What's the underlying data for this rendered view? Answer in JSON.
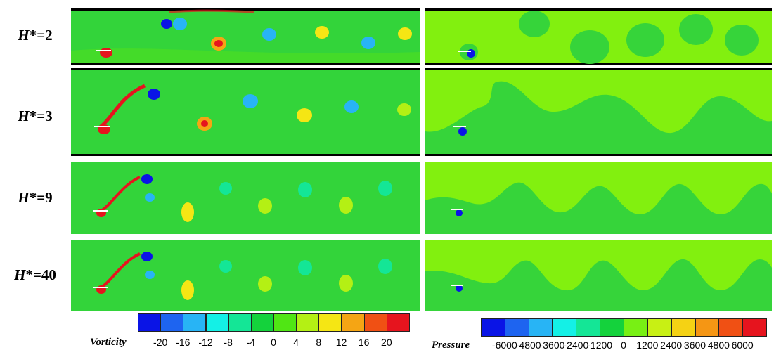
{
  "rows": [
    {
      "h_prefix": "H",
      "h_suffix": "*=2"
    },
    {
      "h_prefix": "H",
      "h_suffix": "*=3"
    },
    {
      "h_prefix": "H",
      "h_suffix": "*=9"
    },
    {
      "h_prefix": "H",
      "h_suffix": "*=40"
    }
  ],
  "vorticity_legend": {
    "title": "Vorticity",
    "ticks": [
      "-20",
      "-16",
      "-12",
      "-8",
      "-4",
      "0",
      "4",
      "8",
      "12",
      "16",
      "20"
    ],
    "colors": [
      "#0a14e6",
      "#1e64f0",
      "#28b4f5",
      "#14f0e6",
      "#14e696",
      "#14d23c",
      "#50e614",
      "#b4f014",
      "#f5e614",
      "#f5a514",
      "#f05014",
      "#e6141e"
    ]
  },
  "pressure_legend": {
    "title": "Pressure",
    "ticks": [
      "-6000",
      "-4800",
      "-3600",
      "-2400",
      "-1200",
      "0",
      "1200",
      "2400",
      "3600",
      "4800",
      "6000"
    ],
    "colors": [
      "#0a14e6",
      "#1e64f0",
      "#28b4f5",
      "#14f0e6",
      "#14e696",
      "#14d23c",
      "#78f014",
      "#c8f014",
      "#f5d214",
      "#f59614",
      "#f05014",
      "#e6141e"
    ]
  },
  "field_colors": {
    "vorticity_base": "#33d43a",
    "pressure_base": "#36d43a",
    "pressure_high": "#82f00f",
    "wall": "#000000"
  }
}
